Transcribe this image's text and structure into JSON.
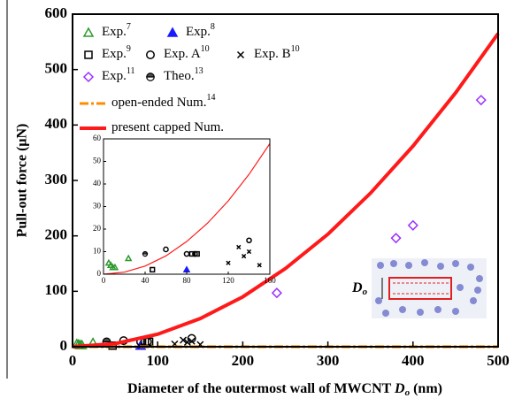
{
  "chart_data": [
    {
      "type": "scatter",
      "xlabel": [
        "Diameter of the outermost wall of MWCNT ",
        "D",
        "o",
        " (nm)"
      ],
      "ylabel": "Pull-out force (μN)",
      "xlim": [
        0,
        500
      ],
      "ylim": [
        0,
        600
      ],
      "xticks": [
        0,
        100,
        200,
        300,
        400,
        500
      ],
      "yticks": [
        0,
        100,
        200,
        300,
        400,
        500,
        600
      ],
      "annotation": {
        "text": "D",
        "sub": "o"
      },
      "series": [
        {
          "name": "Exp.",
          "ref": "7",
          "color": "#2e9a2e",
          "marker": "triangle-open",
          "x": [
            5,
            7,
            9,
            11,
            24
          ],
          "values": [
            5,
            4,
            3,
            3,
            7
          ]
        },
        {
          "name": "Exp.",
          "ref": "8",
          "color": "#1a1aff",
          "marker": "triangle-filled",
          "x": [
            80
          ],
          "values": [
            2
          ]
        },
        {
          "name": "Exp.",
          "ref": "9",
          "color": "#000000",
          "marker": "square-open",
          "x": [
            47,
            85,
            90
          ],
          "values": [
            2,
            9,
            9
          ]
        },
        {
          "name": "Exp. A",
          "ref": "10",
          "color": "#000000",
          "marker": "circle-open",
          "x": [
            60,
            80,
            88,
            140
          ],
          "values": [
            11,
            9,
            9,
            15
          ]
        },
        {
          "name": "Exp. B",
          "ref": "10",
          "color": "#000000",
          "marker": "cross",
          "x": [
            120,
            130,
            135,
            140,
            150
          ],
          "values": [
            5,
            12,
            8,
            10,
            4
          ]
        },
        {
          "name": "Exp.",
          "ref": "11",
          "color": "#9b30ff",
          "marker": "diamond-open",
          "x": [
            240,
            380,
            400,
            480
          ],
          "values": [
            97,
            196,
            219,
            445
          ]
        },
        {
          "name": "Theo.",
          "ref": "13",
          "color": "#000000",
          "marker": "circle-half",
          "x": [
            40
          ],
          "values": [
            9
          ]
        },
        {
          "name": "open-ended Num.",
          "ref": "14",
          "color": "#ff8c00",
          "marker": "line-dashdot",
          "x": [
            0,
            500
          ],
          "values": [
            0,
            0
          ]
        },
        {
          "name": "present capped Num.",
          "color": "#ff1a1a",
          "marker": "line",
          "x": [
            0,
            50,
            100,
            150,
            200,
            250,
            300,
            350,
            400,
            450,
            500
          ],
          "values": [
            0,
            5.6,
            22.6,
            50.9,
            90,
            141,
            203,
            277,
            362,
            458,
            565
          ]
        }
      ]
    },
    {
      "type": "scatter",
      "xlim": [
        0,
        160
      ],
      "ylim": [
        0,
        60
      ],
      "xticks": [
        0,
        40,
        80,
        120,
        160
      ],
      "yticks": [
        0,
        10,
        20,
        30,
        40,
        50,
        60
      ],
      "series": [
        {
          "color": "#2e9a2e",
          "marker": "triangle-open",
          "x": [
            5,
            7,
            9,
            11,
            24
          ],
          "values": [
            5,
            4,
            3,
            3,
            7
          ]
        },
        {
          "color": "#1a1aff",
          "marker": "triangle-filled",
          "x": [
            80
          ],
          "values": [
            2
          ]
        },
        {
          "color": "#000000",
          "marker": "square-open",
          "x": [
            47,
            85,
            90
          ],
          "values": [
            2,
            9,
            9
          ]
        },
        {
          "color": "#000000",
          "marker": "circle-open",
          "x": [
            60,
            80,
            88,
            140
          ],
          "values": [
            11,
            9,
            9,
            15
          ]
        },
        {
          "color": "#000000",
          "marker": "cross",
          "x": [
            120,
            130,
            135,
            140,
            150
          ],
          "values": [
            5,
            12,
            8,
            10,
            4
          ]
        },
        {
          "color": "#000000",
          "marker": "circle-half",
          "x": [
            40
          ],
          "values": [
            9
          ]
        },
        {
          "color": "#ff8c00",
          "marker": "line-dashdot",
          "x": [
            0,
            160
          ],
          "values": [
            0,
            0
          ]
        },
        {
          "color": "#ff1a1a",
          "marker": "line",
          "x": [
            0,
            20,
            40,
            60,
            80,
            100,
            120,
            140,
            160
          ],
          "values": [
            0,
            0.9,
            3.6,
            8.1,
            14.5,
            22.6,
            32.5,
            44.3,
            57.9
          ]
        }
      ]
    }
  ]
}
